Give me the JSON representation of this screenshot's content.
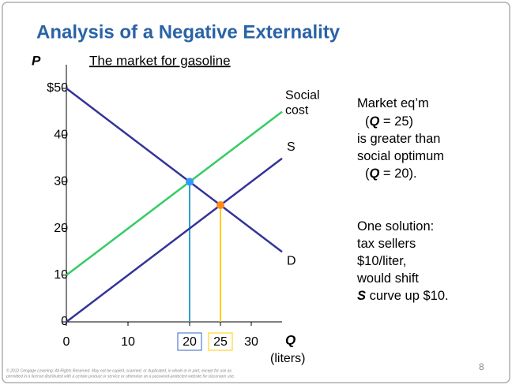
{
  "slide_title": "Analysis of a Negative Externality",
  "chart_data": {
    "type": "line",
    "title": "The market for gasoline",
    "x_label": "Q",
    "x_unit": "(liters)",
    "y_label": "P",
    "xlim": [
      0,
      35
    ],
    "ylim": [
      0,
      50
    ],
    "xticks": [
      0,
      10,
      20,
      25,
      30
    ],
    "yticks": [
      0,
      10,
      20,
      30,
      40,
      {
        "value": 50,
        "label": "$50"
      }
    ],
    "series": [
      {
        "name": "D",
        "color": "#333399",
        "x": [
          0,
          35
        ],
        "values": [
          50,
          15
        ]
      },
      {
        "name": "S",
        "color": "#333399",
        "x": [
          0,
          35
        ],
        "values": [
          0,
          35
        ]
      },
      {
        "name": "Social cost",
        "color": "#33cc66",
        "x": [
          0,
          35
        ],
        "values": [
          10,
          45
        ]
      }
    ],
    "points": [
      {
        "x": 20,
        "y": 30,
        "color": "#3399ff",
        "line_color": "#33a0d0"
      },
      {
        "x": 25,
        "y": 25,
        "color": "#ff8c1a",
        "line_color": "#ffcc00"
      }
    ]
  },
  "notes": [
    [
      {
        "text": "Market eq’m"
      }
    ],
    [
      {
        "text": "("
      },
      {
        "text": "Q",
        "bold": true
      },
      {
        "text": " = 25)"
      }
    ],
    [
      {
        "text": "is greater than"
      }
    ],
    [
      {
        "text": "social optimum"
      }
    ],
    [
      {
        "text": "("
      },
      {
        "text": "Q",
        "bold": true
      },
      {
        "text": " = 20)."
      }
    ],
    [
      {
        "text": "One solution:"
      }
    ],
    [
      {
        "text": "tax sellers"
      }
    ],
    [
      {
        "text": "$10/liter,"
      }
    ],
    [
      {
        "text": "would shift"
      }
    ],
    [
      {
        "text": "S",
        "bold": true
      },
      {
        "text": " curve up $10."
      }
    ]
  ],
  "copyright": [
    "© 2012 Cengage Learning. All Rights Reserved. May not be copied, scanned, or duplicated, in whole or in part, except for use as",
    "permitted in a license distributed with a certain product or service or otherwise on a password-protected website for classroom use."
  ],
  "page_number": "8"
}
